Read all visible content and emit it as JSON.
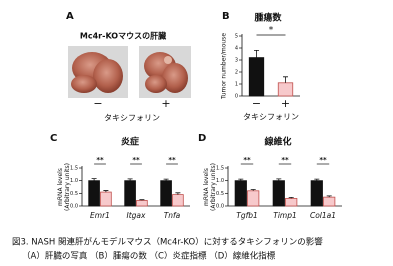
{
  "photo_panel": {
    "label": "A",
    "title": "Mc4r-KOマウスの肝臓",
    "conditions": [
      "−",
      "+"
    ],
    "xlabel": "タキシフォリン"
  },
  "chart_data": [
    {
      "type": "bar",
      "label": "B",
      "title": "腫瘍数",
      "ylabel": "Tumor number/mouse",
      "xlabel": "タキシフォリン",
      "categories": [
        "−",
        "+"
      ],
      "values": [
        3.2,
        1.1
      ],
      "errors": [
        0.6,
        0.5
      ],
      "colors": [
        "#111111",
        "#f7c9cb"
      ],
      "annotations": [
        "*"
      ],
      "ylim": [
        0,
        5
      ],
      "yticks": [
        0,
        1,
        2,
        3,
        4,
        5
      ]
    },
    {
      "type": "bar",
      "label": "C",
      "title": "炎症",
      "ylabel": [
        "mRNA levels",
        "(Arbitrary units)"
      ],
      "categories": [
        "Emr1",
        "Itgax",
        "Tnfa"
      ],
      "series": [
        {
          "color": "#111111",
          "values": [
            1,
            1,
            1
          ],
          "errors": [
            0.08,
            0.07,
            0.06
          ]
        },
        {
          "color": "#f7c9cb",
          "values": [
            0.55,
            0.22,
            0.45
          ],
          "errors": [
            0.06,
            0.03,
            0.07
          ]
        }
      ],
      "annotations": [
        "**",
        "**",
        "**"
      ],
      "ylim": [
        0,
        1.5
      ],
      "yticks": [
        {
          "value": 0,
          "label": "0.0"
        },
        {
          "value": 0.5,
          "label": "0.5"
        },
        {
          "value": 1,
          "label": "1.0"
        },
        {
          "value": 1.5,
          "label": "1.5"
        }
      ]
    },
    {
      "type": "bar",
      "label": "D",
      "title": "線維化",
      "ylabel": [
        "mRNA levels",
        "(Arbitrary units)"
      ],
      "categories": [
        "Tgfb1",
        "Timp1",
        "Col1a1"
      ],
      "series": [
        {
          "color": "#111111",
          "values": [
            1,
            1,
            1
          ],
          "errors": [
            0.06,
            0.07,
            0.06
          ]
        },
        {
          "color": "#f7c9cb",
          "values": [
            0.6,
            0.3,
            0.35
          ],
          "errors": [
            0.05,
            0.04,
            0.05
          ]
        }
      ],
      "annotations": [
        "**",
        "**",
        "**"
      ],
      "ylim": [
        0,
        1.5
      ],
      "yticks": [
        {
          "value": 0,
          "label": "0.0"
        },
        {
          "value": 0.5,
          "label": "0.5"
        },
        {
          "value": 1,
          "label": "1.0"
        },
        {
          "value": 1.5,
          "label": "1.5"
        }
      ]
    }
  ],
  "caption": [
    "図3. NASH 関連肝がんモデルマウス（Mc4r-KO）に対するタキシフォリンの影響",
    "（A）肝臓の写真 （B）腫瘍の数 （C）炎症指標 （D）線維化指標"
  ]
}
